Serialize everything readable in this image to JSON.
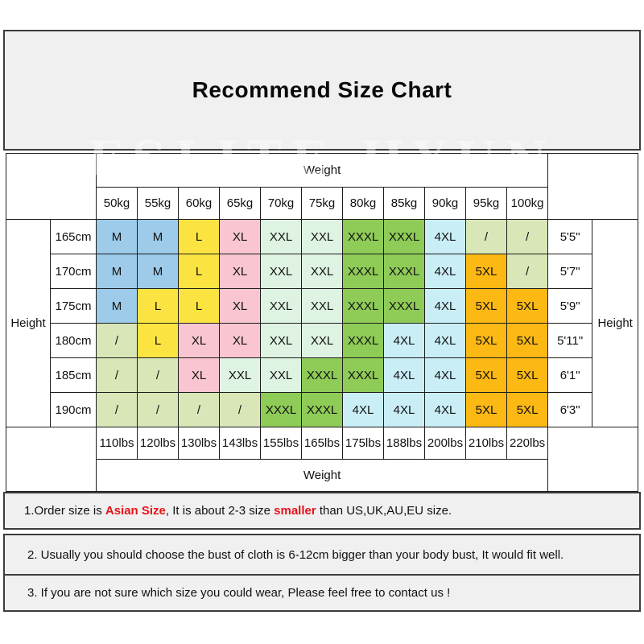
{
  "title": "Recommend Size Chart",
  "watermark": "ESLITE HYUN",
  "chart_data": {
    "type": "table",
    "title": "Recommend Size Chart",
    "col_header": "Weight",
    "row_header": "Height",
    "weights_kg": [
      "50kg",
      "55kg",
      "60kg",
      "65kg",
      "70kg",
      "75kg",
      "80kg",
      "85kg",
      "90kg",
      "95kg",
      "100kg"
    ],
    "weights_lbs": [
      "110lbs",
      "120lbs",
      "130lbs",
      "143lbs",
      "155lbs",
      "165lbs",
      "175lbs",
      "188lbs",
      "200lbs",
      "210lbs",
      "220lbs"
    ],
    "rows": [
      {
        "height_cm": "165cm",
        "height_ft": "5'5\"",
        "sizes": [
          "M",
          "M",
          "L",
          "XL",
          "XXL",
          "XXL",
          "XXXL",
          "XXXL",
          "4XL",
          "/",
          "/"
        ]
      },
      {
        "height_cm": "170cm",
        "height_ft": "5'7\"",
        "sizes": [
          "M",
          "M",
          "L",
          "XL",
          "XXL",
          "XXL",
          "XXXL",
          "XXXL",
          "4XL",
          "5XL",
          "/"
        ]
      },
      {
        "height_cm": "175cm",
        "height_ft": "5'9\"",
        "sizes": [
          "M",
          "L",
          "L",
          "XL",
          "XXL",
          "XXL",
          "XXXL",
          "XXXL",
          "4XL",
          "5XL",
          "5XL"
        ]
      },
      {
        "height_cm": "180cm",
        "height_ft": "5'11\"",
        "sizes": [
          "/",
          "L",
          "XL",
          "XL",
          "XXL",
          "XXL",
          "XXXL",
          "4XL",
          "4XL",
          "5XL",
          "5XL"
        ]
      },
      {
        "height_cm": "185cm",
        "height_ft": "6'1\"",
        "sizes": [
          "/",
          "/",
          "XL",
          "XXL",
          "XXL",
          "XXXL",
          "XXXL",
          "4XL",
          "4XL",
          "5XL",
          "5XL"
        ]
      },
      {
        "height_cm": "190cm",
        "height_ft": "6'3\"",
        "sizes": [
          "/",
          "/",
          "/",
          "/",
          "XXXL",
          "XXXL",
          "4XL",
          "4XL",
          "4XL",
          "5XL",
          "5XL"
        ]
      }
    ],
    "size_colors": {
      "M": "#9dcbe9",
      "L": "#fbe442",
      "XL": "#f8c5d1",
      "XXL": "#def3e2",
      "XXXL": "#8ecb57",
      "4XL": "#c9eef6",
      "5XL": "#fcb813",
      "slash": "#d9e6b8"
    }
  },
  "notes": {
    "accent_red": "#e8121a",
    "note1_segments": [
      {
        "text": "1.Order size is ",
        "style": "normal"
      },
      {
        "text": "Asian Size",
        "style": "red-bold"
      },
      {
        "text": ", It is about 2-3 size ",
        "style": "normal"
      },
      {
        "text": "smaller",
        "style": "red-bold"
      },
      {
        "text": " than US,UK,AU,EU size.",
        "style": "normal"
      }
    ],
    "note2": "2. Usually you should choose the bust of cloth is 6-12cm bigger than your body bust, It would fit well.",
    "note3": "3. If you are not sure which size you could wear, Please feel free to contact us !"
  }
}
